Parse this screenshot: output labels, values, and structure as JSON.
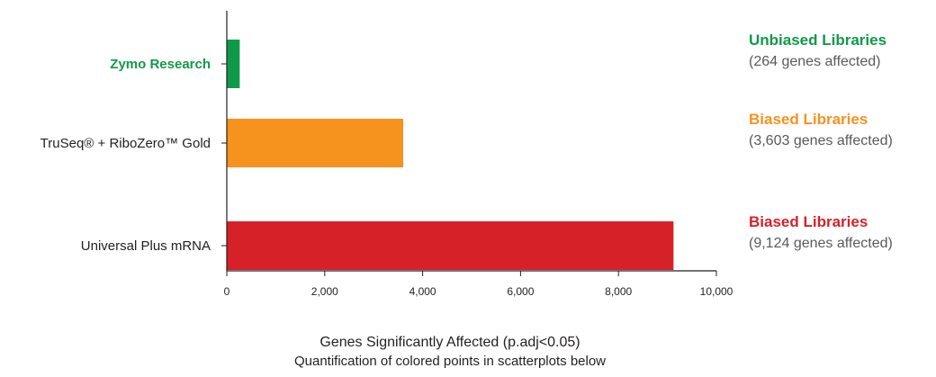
{
  "chart_data": {
    "type": "bar",
    "orientation": "horizontal",
    "categories": [
      "Zymo Research",
      "TruSeq® + RiboZero™ Gold",
      "Universal Plus mRNA"
    ],
    "values": [
      264,
      3603,
      9124
    ],
    "colors": [
      "#0f9a48",
      "#f6921e",
      "#d72128"
    ],
    "category_label_colors": [
      "#0f9a48",
      "#231f20",
      "#231f20"
    ],
    "xlabel": "Genes Significantly Affected (p.adj<0.05)",
    "subtitle": "Quantification of colored points in scatterplots below",
    "xlim": [
      0,
      10000
    ],
    "xticks": [
      0,
      2000,
      4000,
      6000,
      8000,
      10000
    ],
    "xtick_labels": [
      "0",
      "2,000",
      "4,000",
      "6,000",
      "8,000",
      "10,000"
    ],
    "grid": false,
    "annotations": [
      {
        "title": "Unbiased Libraries",
        "detail": "(264 genes affected)",
        "color": "#0f9a48"
      },
      {
        "title": "Biased Libraries",
        "detail": "(3,603 genes affected)",
        "color": "#f6921e"
      },
      {
        "title": "Biased Libraries",
        "detail": "(9,124 genes affected)",
        "color": "#d72128"
      }
    ]
  }
}
